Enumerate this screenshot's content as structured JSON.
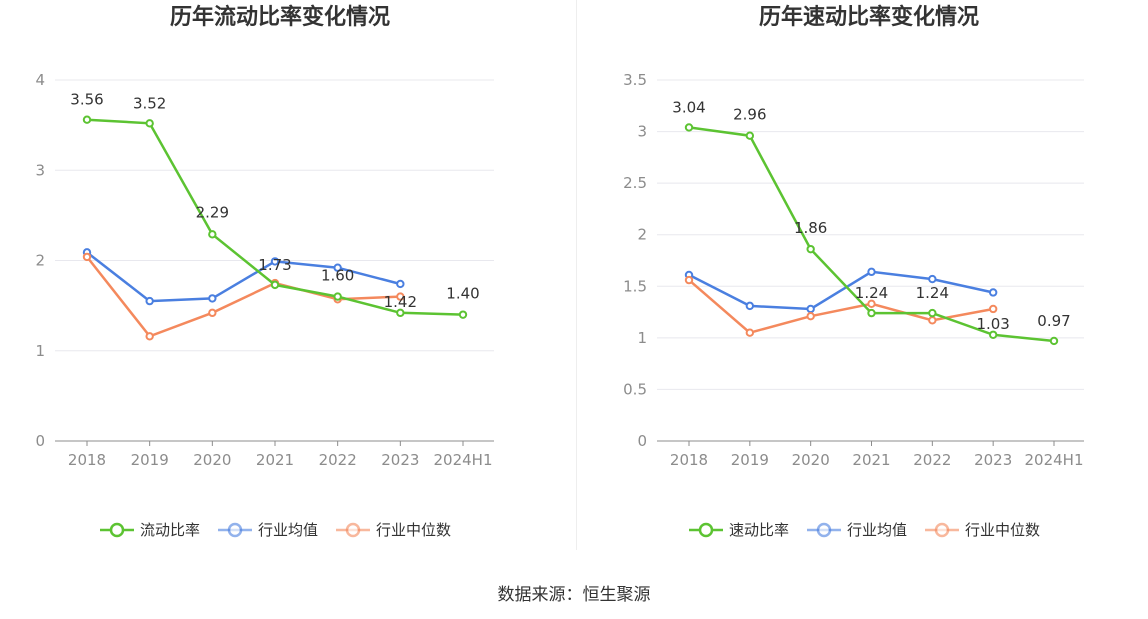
{
  "source": "数据来源：恒生聚源",
  "chart_data": [
    {
      "type": "line",
      "title": "历年流动比率变化情况",
      "categories": [
        "2018",
        "2019",
        "2020",
        "2021",
        "2022",
        "2023",
        "2024H1"
      ],
      "ylim": [
        0,
        4
      ],
      "yticks": [
        0,
        1,
        2,
        3,
        4
      ],
      "grid": true,
      "legend_position": "bottom",
      "series": [
        {
          "name": "流动比率",
          "color": "#5cc332",
          "values": [
            3.56,
            3.52,
            2.29,
            1.73,
            1.6,
            1.42,
            1.4
          ],
          "labels": [
            "3.56",
            "3.52",
            "2.29",
            "1.73",
            "1.60",
            "1.42",
            "1.40"
          ]
        },
        {
          "name": "行业均值",
          "color": "#4a7fe0",
          "values": [
            2.09,
            1.55,
            1.58,
            1.99,
            1.92,
            1.74,
            null
          ]
        },
        {
          "name": "行业中位数",
          "color": "#f4895d",
          "values": [
            2.04,
            1.16,
            1.42,
            1.75,
            1.57,
            1.6,
            null
          ]
        }
      ]
    },
    {
      "type": "line",
      "title": "历年速动比率变化情况",
      "categories": [
        "2018",
        "2019",
        "2020",
        "2021",
        "2022",
        "2023",
        "2024H1"
      ],
      "ylim": [
        0,
        3.5
      ],
      "yticks": [
        0,
        0.5,
        1,
        1.5,
        2,
        2.5,
        3,
        3.5
      ],
      "ytick_labels": [
        "0",
        "0.5",
        "1",
        "1.5",
        "2",
        "2.5",
        "3",
        "3.5"
      ],
      "grid": true,
      "legend_position": "bottom",
      "series": [
        {
          "name": "速动比率",
          "color": "#5cc332",
          "values": [
            3.04,
            2.96,
            1.86,
            1.24,
            1.24,
            1.03,
            0.97
          ],
          "labels": [
            "3.04",
            "2.96",
            "1.86",
            "1.24",
            "1.24",
            "1.03",
            "0.97"
          ]
        },
        {
          "name": "行业均值",
          "color": "#4a7fe0",
          "values": [
            1.61,
            1.31,
            1.28,
            1.64,
            1.57,
            1.44,
            null
          ]
        },
        {
          "name": "行业中位数",
          "color": "#f4895d",
          "values": [
            1.56,
            1.05,
            1.21,
            1.33,
            1.17,
            1.28,
            null
          ]
        }
      ]
    }
  ]
}
